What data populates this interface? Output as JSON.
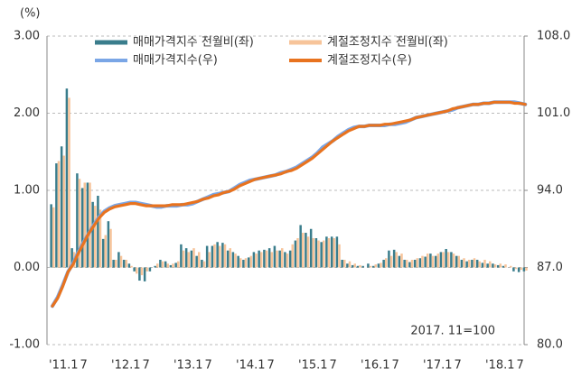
{
  "chart_data": {
    "type": "bar_line",
    "y_unit_label": "(%)",
    "annotation": "2017. 11=100",
    "categories": [
      "'11.1",
      null,
      null,
      null,
      null,
      null,
      "7",
      null,
      null,
      null,
      null,
      null,
      "'12.1",
      null,
      null,
      null,
      null,
      null,
      "7",
      null,
      null,
      null,
      null,
      null,
      "'13.1",
      null,
      null,
      null,
      null,
      null,
      "7",
      null,
      null,
      null,
      null,
      null,
      "'14.1",
      null,
      null,
      null,
      null,
      null,
      "7",
      null,
      null,
      null,
      null,
      null,
      "'15.1",
      null,
      null,
      null,
      null,
      null,
      "7",
      null,
      null,
      null,
      null,
      null,
      "'16.1",
      null,
      null,
      null,
      null,
      null,
      "7",
      null,
      null,
      null,
      null,
      null,
      "'17.1",
      null,
      null,
      null,
      null,
      null,
      "7",
      null,
      null,
      null,
      null,
      null,
      "'18.1",
      null,
      null,
      null,
      null,
      null,
      "7",
      null
    ],
    "ylim": [
      -1,
      3
    ],
    "yticks": [
      {
        "value": -1,
        "label": "-1.00"
      },
      {
        "value": 0,
        "label": "0.00"
      },
      {
        "value": 1,
        "label": "1.00"
      },
      {
        "value": 2,
        "label": "2.00"
      },
      {
        "value": 3,
        "label": "3.00"
      }
    ],
    "y2lim": [
      80,
      108
    ],
    "y2ticks": [
      {
        "value": 80,
        "label": "80.0"
      },
      {
        "value": 87,
        "label": "87.0"
      },
      {
        "value": 94,
        "label": "94.0"
      },
      {
        "value": 101,
        "label": "101.0"
      },
      {
        "value": 108,
        "label": "108.0"
      }
    ],
    "grid": true,
    "series": [
      {
        "name": "매매가격지수 전월비(좌)",
        "kind": "bar",
        "color": "#3a7d8c",
        "values": [
          0.82,
          1.35,
          1.57,
          2.32,
          0.25,
          1.22,
          1.03,
          1.1,
          0.85,
          0.93,
          0.37,
          0.6,
          0.1,
          0.2,
          0.1,
          0.05,
          -0.05,
          -0.17,
          -0.18,
          -0.05,
          0.02,
          0.1,
          0.08,
          0.03,
          0.06,
          0.3,
          0.25,
          0.22,
          0.15,
          0.1,
          0.28,
          0.28,
          0.33,
          0.32,
          0.22,
          0.2,
          0.15,
          0.1,
          0.13,
          0.2,
          0.22,
          0.23,
          0.25,
          0.28,
          0.22,
          0.2,
          0.22,
          0.35,
          0.55,
          0.45,
          0.5,
          0.38,
          0.33,
          0.4,
          0.4,
          0.4,
          0.1,
          0.05,
          0.03,
          0.02,
          0.02,
          0.05,
          0.02,
          0.05,
          0.1,
          0.22,
          0.23,
          0.15,
          0.1,
          0.07,
          0.1,
          0.12,
          0.14,
          0.18,
          0.15,
          0.2,
          0.24,
          0.2,
          0.15,
          0.1,
          0.08,
          0.1,
          0.1,
          0.06,
          0.05,
          0.05,
          0.03,
          0.02,
          0.0,
          -0.05,
          -0.06,
          -0.05
        ]
      },
      {
        "name": "계절조정지수 전월비(좌)",
        "kind": "bar",
        "color": "#f7c49a",
        "values": [
          0.78,
          1.38,
          1.45,
          2.2,
          0.2,
          1.15,
          1.1,
          1.1,
          0.8,
          0.75,
          0.42,
          0.5,
          0.1,
          0.15,
          0.1,
          0.02,
          -0.08,
          -0.1,
          -0.05,
          0.0,
          0.05,
          0.08,
          0.05,
          0.05,
          0.08,
          0.22,
          0.2,
          0.25,
          0.2,
          0.08,
          0.2,
          0.3,
          0.28,
          0.3,
          0.25,
          0.18,
          0.12,
          0.12,
          0.15,
          0.18,
          0.2,
          0.22,
          0.2,
          0.22,
          0.25,
          0.18,
          0.3,
          0.38,
          0.45,
          0.4,
          0.38,
          0.35,
          0.35,
          0.38,
          0.38,
          0.3,
          0.1,
          0.08,
          0.05,
          0.03,
          0.0,
          0.02,
          0.04,
          0.06,
          0.12,
          0.15,
          0.2,
          0.18,
          0.1,
          0.1,
          0.12,
          0.15,
          0.18,
          0.15,
          0.18,
          0.2,
          0.2,
          0.18,
          0.15,
          0.12,
          0.1,
          0.12,
          0.08,
          0.1,
          0.08,
          0.04,
          0.05,
          0.04,
          0.02,
          -0.02,
          -0.03,
          -0.04
        ]
      },
      {
        "name": "매매가격지수(우)",
        "kind": "line",
        "axis": "y2",
        "color": "#7aa6e6",
        "values": [
          83.5,
          84.3,
          85.4,
          86.6,
          87.4,
          88.4,
          89.3,
          90.1,
          90.9,
          91.6,
          92.1,
          92.4,
          92.6,
          92.7,
          92.8,
          92.9,
          92.9,
          92.8,
          92.7,
          92.6,
          92.5,
          92.5,
          92.6,
          92.6,
          92.6,
          92.7,
          92.7,
          92.8,
          93.0,
          93.2,
          93.4,
          93.6,
          93.7,
          93.8,
          93.9,
          94.2,
          94.5,
          94.7,
          94.9,
          95.0,
          95.1,
          95.2,
          95.3,
          95.4,
          95.6,
          95.7,
          95.9,
          96.1,
          96.4,
          96.7,
          97.0,
          97.4,
          97.9,
          98.2,
          98.5,
          98.9,
          99.2,
          99.5,
          99.7,
          99.8,
          99.8,
          99.9,
          99.9,
          99.9,
          99.9,
          100.0,
          100.0,
          100.1,
          100.2,
          100.4,
          100.6,
          100.7,
          100.8,
          100.9,
          101.0,
          101.1,
          101.2,
          101.3,
          101.5,
          101.6,
          101.7,
          101.8,
          101.8,
          101.9,
          101.9,
          102.0,
          102.0,
          102.0,
          102.0,
          102.0,
          101.9,
          101.8
        ]
      },
      {
        "name": "계절조정지수(우)",
        "kind": "line",
        "axis": "y2",
        "color": "#e8731f",
        "values": [
          83.5,
          84.2,
          85.3,
          86.6,
          87.3,
          88.3,
          89.2,
          90.1,
          90.8,
          91.5,
          92.0,
          92.3,
          92.5,
          92.6,
          92.7,
          92.8,
          92.8,
          92.7,
          92.6,
          92.6,
          92.6,
          92.6,
          92.6,
          92.7,
          92.7,
          92.7,
          92.8,
          92.9,
          93.0,
          93.2,
          93.3,
          93.5,
          93.6,
          93.8,
          93.9,
          94.1,
          94.4,
          94.6,
          94.8,
          95.0,
          95.1,
          95.2,
          95.3,
          95.4,
          95.5,
          95.7,
          95.8,
          96.0,
          96.3,
          96.6,
          96.9,
          97.3,
          97.7,
          98.1,
          98.5,
          98.8,
          99.1,
          99.4,
          99.6,
          99.8,
          99.8,
          99.9,
          99.9,
          99.9,
          100.0,
          100.0,
          100.1,
          100.2,
          100.3,
          100.4,
          100.6,
          100.7,
          100.8,
          100.9,
          101.0,
          101.1,
          101.2,
          101.4,
          101.5,
          101.6,
          101.7,
          101.8,
          101.8,
          101.9,
          101.9,
          102.0,
          102.0,
          102.0,
          102.0,
          101.9,
          101.9,
          101.8
        ]
      }
    ]
  }
}
